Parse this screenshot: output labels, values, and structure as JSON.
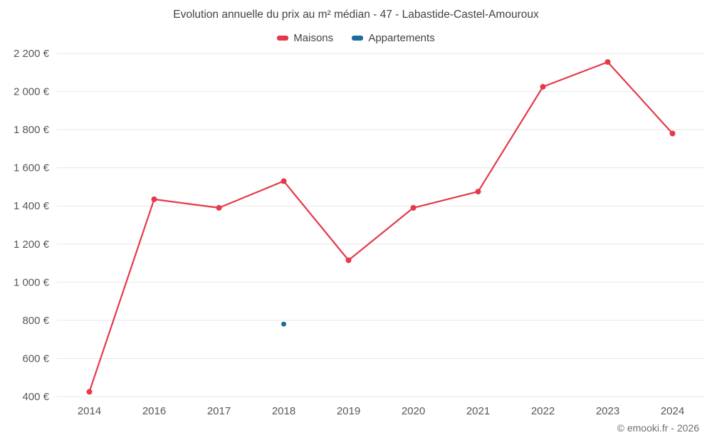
{
  "title": "Evolution annuelle du prix au m² médian - 47 - Labastide-Castel-Amouroux",
  "footer": "© emooki.fr - 2026",
  "chart_data": {
    "type": "line",
    "title": "Evolution annuelle du prix au m² médian - 47 - Labastide-Castel-Amouroux",
    "categories": [
      "2014",
      "2016",
      "2017",
      "2018",
      "2019",
      "2020",
      "2021",
      "2022",
      "2023",
      "2024"
    ],
    "series": [
      {
        "name": "Maisons",
        "color": "#e5394a",
        "values": [
          425,
          1435,
          1390,
          1530,
          1115,
          1390,
          1475,
          2025,
          2155,
          1780
        ]
      },
      {
        "name": "Appartements",
        "color": "#1b6d9b",
        "values": [
          null,
          null,
          null,
          780,
          null,
          null,
          null,
          null,
          null,
          null
        ]
      }
    ],
    "ylim": [
      400,
      2200
    ],
    "ytick_step": 200,
    "ytick_labels": [
      "400 €",
      "600 €",
      "800 €",
      "1 000 €",
      "1 200 €",
      "1 400 €",
      "1 600 €",
      "1 800 €",
      "2 000 €",
      "2 200 €"
    ],
    "grid": true,
    "legend_position": "top",
    "grid_color": "#e7e7e7"
  }
}
